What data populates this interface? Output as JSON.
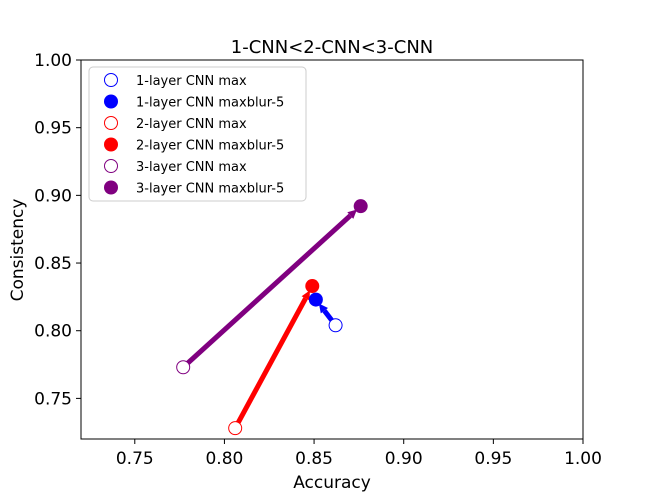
{
  "chart_data": {
    "type": "scatter",
    "title": "1-CNN<2-CNN<3-CNN",
    "xlabel": "Accuracy",
    "ylabel": "Consistency",
    "xlim": [
      0.72,
      1.0
    ],
    "ylim": [
      0.72,
      1.0
    ],
    "xticks": [
      0.75,
      0.8,
      0.85,
      0.9,
      0.95,
      1.0
    ],
    "yticks": [
      0.75,
      0.8,
      0.85,
      0.9,
      0.95,
      1.0
    ],
    "xtick_labels": [
      "0.75",
      "0.80",
      "0.85",
      "0.90",
      "0.95",
      "1.00"
    ],
    "ytick_labels": [
      "0.75",
      "0.80",
      "0.85",
      "0.90",
      "0.95",
      "1.00"
    ],
    "grid": false,
    "legend_position": "upper-left",
    "series": [
      {
        "name": "1-layer CNN max",
        "color": "#0000ff",
        "filled": false,
        "x": [
          0.862
        ],
        "y": [
          0.804
        ]
      },
      {
        "name": "1-layer CNN maxblur-5",
        "color": "#0000ff",
        "filled": true,
        "x": [
          0.851
        ],
        "y": [
          0.823
        ]
      },
      {
        "name": "2-layer CNN max",
        "color": "#ff0000",
        "filled": false,
        "x": [
          0.806
        ],
        "y": [
          0.728
        ]
      },
      {
        "name": "2-layer CNN maxblur-5",
        "color": "#ff0000",
        "filled": true,
        "x": [
          0.849
        ],
        "y": [
          0.833
        ]
      },
      {
        "name": "3-layer CNN max",
        "color": "#800080",
        "filled": false,
        "x": [
          0.777
        ],
        "y": [
          0.773
        ]
      },
      {
        "name": "3-layer CNN maxblur-5",
        "color": "#800080",
        "filled": true,
        "x": [
          0.876
        ],
        "y": [
          0.892
        ]
      }
    ],
    "arrows": [
      {
        "from": [
          0.862,
          0.804
        ],
        "to": [
          0.851,
          0.823
        ],
        "color": "#0000ff"
      },
      {
        "from": [
          0.806,
          0.728
        ],
        "to": [
          0.849,
          0.833
        ],
        "color": "#ff0000"
      },
      {
        "from": [
          0.777,
          0.773
        ],
        "to": [
          0.876,
          0.892
        ],
        "color": "#800080"
      }
    ]
  }
}
